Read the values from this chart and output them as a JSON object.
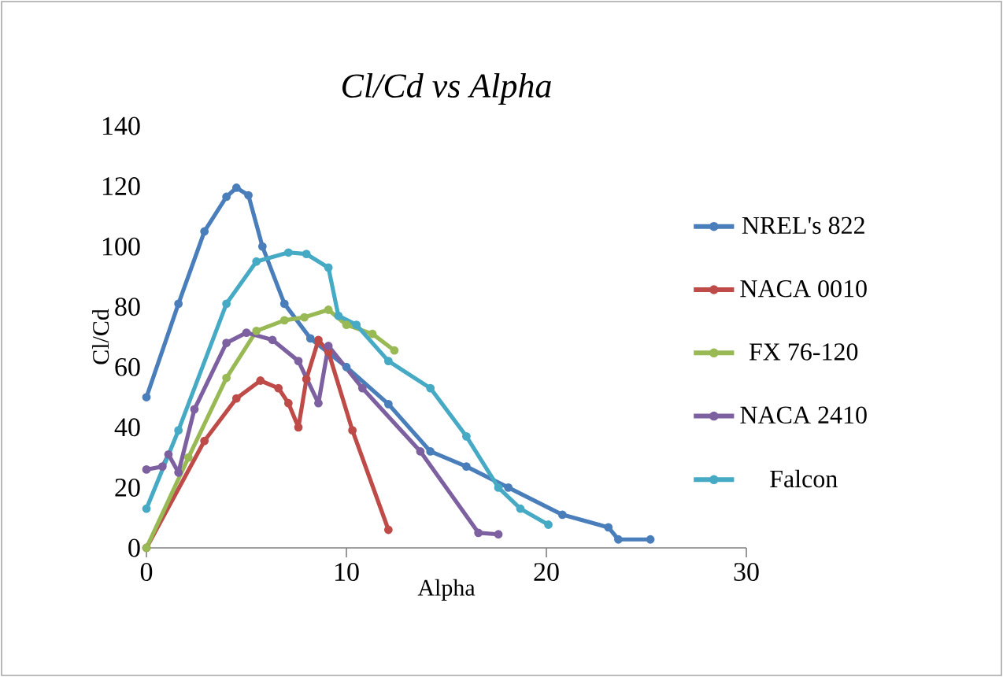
{
  "chart_data": {
    "type": "line",
    "title": "*Cl/Cd vs Alpha*",
    "xlabel": "Alpha",
    "ylabel": "Cl/Cd",
    "xlim": [
      0,
      30
    ],
    "ylim": [
      0,
      140
    ],
    "xticks": [
      0,
      10,
      20,
      30
    ],
    "yticks": [
      0,
      20,
      40,
      60,
      80,
      100,
      120,
      140
    ],
    "grid": false,
    "legend": "right",
    "marker": "circle",
    "line_style": "solid",
    "series": [
      {
        "name": "NREL's 822",
        "color": "#4a7ebb",
        "x": [
          0,
          1.6,
          2.9,
          4.0,
          4.5,
          5.1,
          5.8,
          6.9,
          8.2,
          10,
          12.1,
          14.2,
          16,
          18.1,
          20.8,
          23.1,
          23.6,
          25.2
        ],
        "values": [
          50,
          81,
          105,
          116.5,
          119.5,
          117,
          100,
          81,
          69.5,
          60,
          47.7,
          32,
          27,
          20,
          11,
          6.8,
          2.8,
          2.8
        ]
      },
      {
        "name": "NACA 0010",
        "color": "#be4b48",
        "x": [
          0,
          2.9,
          4.5,
          5.7,
          6.6,
          7.1,
          7.6,
          8.0,
          8.6,
          9.1,
          10.3,
          12.1
        ],
        "values": [
          0,
          35.5,
          49.6,
          55.5,
          53,
          48,
          40,
          56,
          69,
          65,
          39,
          6
        ]
      },
      {
        "name": "FX 76-120",
        "color": "#98b954",
        "x": [
          0,
          2.1,
          4.0,
          5.5,
          6.9,
          7.9,
          9.1,
          10,
          11.3,
          12.4
        ],
        "values": [
          0,
          30,
          56.4,
          72,
          75.5,
          76.5,
          79,
          74,
          71,
          65.5
        ]
      },
      {
        "name": "NACA 2410",
        "color": "#7d60a0",
        "x": [
          0,
          0.8,
          1.1,
          1.6,
          2.4,
          4.0,
          5.0,
          6.3,
          7.6,
          8.6,
          9.1,
          10.8,
          13.7,
          16.6,
          17.6
        ],
        "values": [
          26,
          27,
          31,
          25,
          46,
          68,
          71.4,
          69,
          62,
          48,
          67,
          53,
          32,
          5,
          4.5
        ]
      },
      {
        "name": "Falcon",
        "color": "#46aac5",
        "x": [
          0,
          1.6,
          4.0,
          5.5,
          7.1,
          8.0,
          9.1,
          9.6,
          10.5,
          12.1,
          14.2,
          16,
          17.6,
          18.7,
          20.1
        ],
        "values": [
          13,
          39,
          81,
          95,
          98,
          97.5,
          93,
          77,
          74,
          62,
          53,
          37,
          20,
          13,
          7.7
        ]
      }
    ]
  }
}
